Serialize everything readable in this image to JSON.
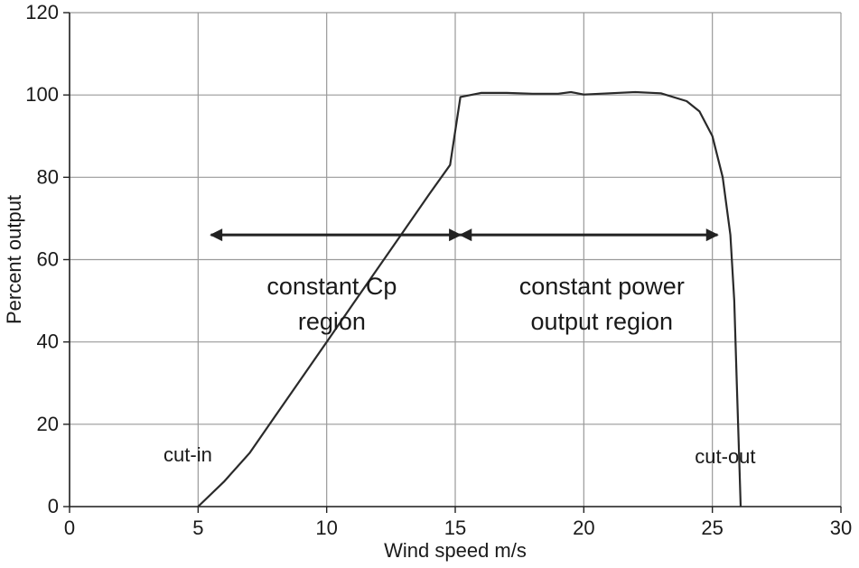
{
  "chart_data": {
    "type": "line",
    "title": "",
    "xlabel": "Wind speed m/s",
    "ylabel": "Percent output",
    "xlim": [
      0,
      30
    ],
    "ylim": [
      0,
      120
    ],
    "x_ticks": [
      0,
      5,
      10,
      15,
      20,
      25,
      30
    ],
    "y_ticks": [
      0,
      20,
      40,
      60,
      80,
      100,
      120
    ],
    "grid": true,
    "legend": "none",
    "series": [
      {
        "x": [
          5,
          6,
          7,
          8,
          9,
          10,
          11,
          12,
          13,
          14,
          14.8,
          15.2,
          16,
          17,
          18,
          19,
          19.5,
          20,
          21,
          22,
          23,
          24,
          24.5,
          25,
          25.4,
          25.7,
          25.85,
          25.95,
          26.05,
          26.1
        ],
        "y": [
          0,
          6,
          13,
          22,
          31,
          40,
          49,
          58,
          67,
          76,
          83,
          99.5,
          100.5,
          100.5,
          100.3,
          100.3,
          100.7,
          100.1,
          100.4,
          100.7,
          100.4,
          98.5,
          96,
          90,
          80,
          66,
          50,
          30,
          10,
          0
        ]
      }
    ],
    "annotations": [
      {
        "text": "cut-in",
        "x": 4.6,
        "y": 11
      },
      {
        "text": "cut-out",
        "x": 25.5,
        "y": 10.5
      },
      {
        "text": "constant Cp",
        "x": 10.2,
        "y": 51.5
      },
      {
        "text": "region",
        "x": 10.2,
        "y": 43
      },
      {
        "text": "constant power",
        "x": 20.7,
        "y": 51.5
      },
      {
        "text": "output region",
        "x": 20.7,
        "y": 43
      }
    ],
    "arrows": [
      {
        "x_from": 5.5,
        "x_to": 15.2,
        "y": 66
      },
      {
        "x_from": 15.2,
        "x_to": 25.2,
        "y": 66
      }
    ]
  }
}
